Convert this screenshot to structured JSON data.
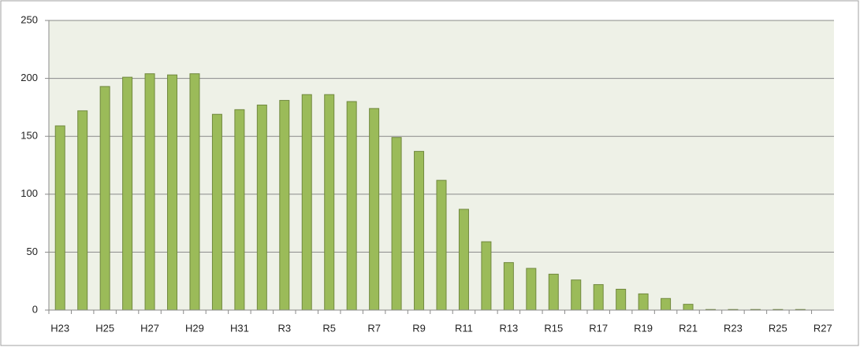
{
  "chart_data": {
    "type": "bar",
    "categories": [
      "H23",
      null,
      "H25",
      null,
      "H27",
      null,
      "H29",
      null,
      "H31",
      null,
      "R3",
      null,
      "R5",
      null,
      "R7",
      null,
      "R9",
      null,
      "R11",
      null,
      "R13",
      null,
      "R15",
      null,
      "R17",
      null,
      "R19",
      null,
      "R21",
      null,
      "R23",
      null,
      "R25",
      null,
      "R27"
    ],
    "values": [
      159,
      172,
      193,
      201,
      204,
      203,
      204,
      169,
      173,
      177,
      181,
      186,
      186,
      180,
      174,
      149,
      137,
      112,
      87,
      59,
      41,
      36,
      31,
      26,
      22,
      18,
      14,
      10,
      5,
      0.5,
      0.5,
      0.5,
      0.5,
      0.5,
      0
    ],
    "color": "#9bbb59",
    "ylim": [
      0,
      250
    ],
    "yticks": [
      0,
      50,
      100,
      150,
      200,
      250
    ],
    "grid": true
  }
}
